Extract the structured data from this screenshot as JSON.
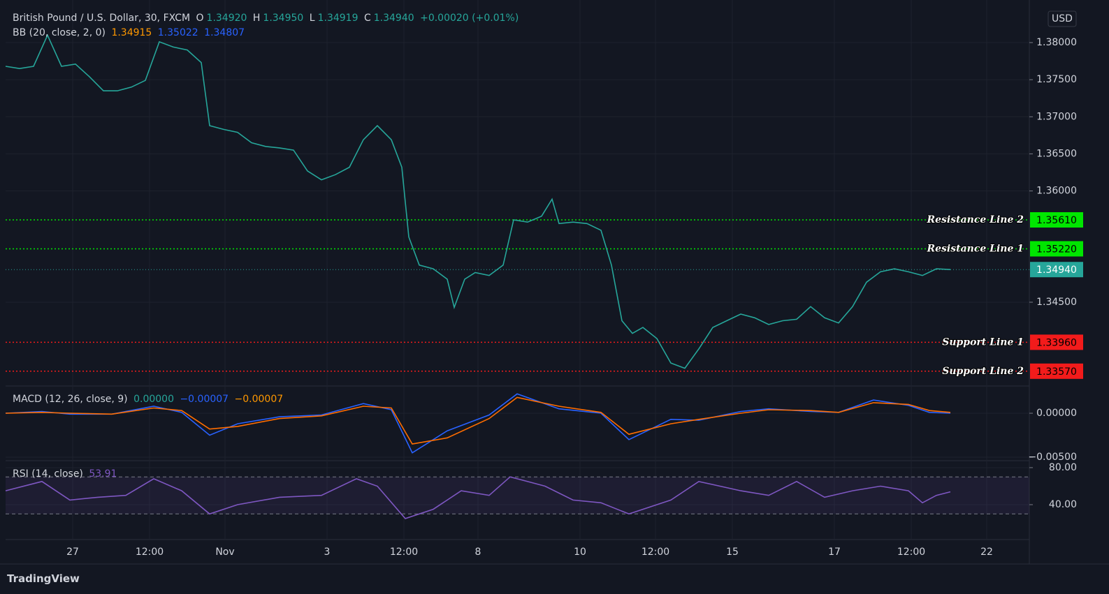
{
  "chart_data": [
    {
      "type": "line",
      "title": "British Pound / U.S. Dollar, 30, FXCM",
      "ohlc": [
        {
          "key": "O",
          "value": "1.34920"
        },
        {
          "key": "H",
          "value": "1.34950"
        },
        {
          "key": "L",
          "value": "1.34919"
        },
        {
          "key": "C",
          "value": "1.34940"
        }
      ],
      "change": "+0.00020 (+0.01%)",
      "indicator": "BB (20, close, 2, 0)",
      "indicator_values": [
        "1.34915",
        "1.35022",
        "1.34807"
      ],
      "currency": "USD",
      "color": "#26a69a",
      "x": [
        0,
        4,
        8,
        12,
        16,
        20,
        24,
        28,
        32,
        36,
        40,
        44,
        48,
        52,
        56,
        58.4,
        62.4,
        66.4,
        70.4,
        74.4,
        78.4,
        82.4,
        86.4,
        90.4,
        94.4,
        98.4,
        102.4,
        106.4,
        110.4,
        113.4,
        115.4,
        118.4,
        122.4,
        126.4,
        128.4,
        131.4,
        134.4,
        138.4,
        142.4,
        145.4,
        149.4,
        153.4,
        156.4,
        158.4,
        162.4,
        166.4,
        170.4,
        173.4,
        176.4,
        179.4,
        182.4,
        186.4,
        190.4,
        194.4,
        198.4,
        202.4,
        206.4,
        210.4,
        214.4,
        218.4,
        222.4,
        226.4,
        230.4,
        234.4,
        238.4,
        242.4,
        246.4,
        250.4,
        254.4,
        258.4,
        262.4,
        266.4,
        270.4
      ],
      "values": [
        1.3768,
        1.3765,
        1.3768,
        1.381,
        1.3768,
        1.3771,
        1.3754,
        1.3735,
        1.3735,
        1.374,
        1.3749,
        1.3801,
        1.3794,
        1.379,
        1.3773,
        1.3688,
        1.3683,
        1.3679,
        1.3665,
        1.366,
        1.3658,
        1.3655,
        1.3627,
        1.3615,
        1.3622,
        1.3632,
        1.3669,
        1.3688,
        1.3669,
        1.3632,
        1.3538,
        1.35,
        1.3495,
        1.3481,
        1.3443,
        1.3481,
        1.349,
        1.3486,
        1.35,
        1.3561,
        1.3558,
        1.3566,
        1.3589,
        1.3556,
        1.3558,
        1.3556,
        1.3547,
        1.35,
        1.3425,
        1.3408,
        1.3416,
        1.3401,
        1.3368,
        1.3361,
        1.3387,
        1.3416,
        1.3425,
        1.3434,
        1.3429,
        1.342,
        1.3425,
        1.3427,
        1.3444,
        1.3429,
        1.3422,
        1.3444,
        1.3477,
        1.3491,
        1.3495,
        1.3491,
        1.3486,
        1.3495,
        1.3494
      ],
      "xlim": [
        0,
        293
      ],
      "xticks": [
        {
          "value": 19.2,
          "label": "27"
        },
        {
          "value": 41.2,
          "label": "12:00"
        },
        {
          "value": 62.8,
          "label": "Nov"
        },
        {
          "value": 92,
          "label": "3"
        },
        {
          "value": 114,
          "label": "12:00"
        },
        {
          "value": 135.2,
          "label": "8"
        },
        {
          "value": 164.4,
          "label": "10"
        },
        {
          "value": 186,
          "label": "12:00"
        },
        {
          "value": 208,
          "label": "15"
        },
        {
          "value": 237.2,
          "label": "17"
        },
        {
          "value": 259.2,
          "label": "12:00"
        },
        {
          "value": 280.8,
          "label": "22"
        }
      ],
      "ylim": [
        1.3338,
        1.3848
      ],
      "yticks": [
        {
          "value": 1.38,
          "label": "1.38000"
        },
        {
          "value": 1.375,
          "label": "1.37500"
        },
        {
          "value": 1.37,
          "label": "1.37000"
        },
        {
          "value": 1.365,
          "label": "1.36500"
        },
        {
          "value": 1.36,
          "label": "1.36000"
        },
        {
          "value": 1.345,
          "label": "1.34500"
        }
      ],
      "levels": [
        {
          "name": "Resistance Line 2",
          "value": 1.3561,
          "label": "1.35610",
          "color": "#00e600"
        },
        {
          "name": "Resistance Line 1",
          "value": 1.3522,
          "label": "1.35220",
          "color": "#00e600"
        },
        {
          "name": "Support Line 1",
          "value": 1.3396,
          "label": "1.33960",
          "color": "#f21b1b"
        },
        {
          "name": "Support Line 2",
          "value": 1.3357,
          "label": "1.33570",
          "color": "#f21b1b"
        }
      ],
      "last_price": {
        "value": 1.3494,
        "label": "1.34940",
        "color": "#26a69a"
      },
      "grid": true
    },
    {
      "type": "line",
      "title": "MACD (12, 26, close, 9)",
      "indicator_values": [
        "0.00000",
        "−0.00007",
        "−0.00007"
      ],
      "x": [
        0,
        10.4,
        18.4,
        30.4,
        42.4,
        50.4,
        58.4,
        66.4,
        78.4,
        90.4,
        102.4,
        110.4,
        116.4,
        126.4,
        138.4,
        146.4,
        158.4,
        170.4,
        178.4,
        190.4,
        198.4,
        210.4,
        218.4,
        230.4,
        238.4,
        248.4,
        258.4,
        264.4,
        270.4
      ],
      "series": [
        {
          "color": "#2962ff",
          "values": [
            0,
            0.0002,
            -0.0001,
            -0.0001,
            0.0008,
            0.0001,
            -0.0025,
            -0.0012,
            -0.0004,
            -0.0002,
            0.0011,
            0.0004,
            -0.0045,
            -0.002,
            -0.0002,
            0.0022,
            0.0005,
            0,
            -0.003,
            -0.0007,
            -0.0008,
            0.0002,
            0.0005,
            0.0002,
            0.0001,
            0.0015,
            0.0009,
            0.0001,
            0
          ]
        },
        {
          "color": "#ff6d00",
          "values": [
            0,
            0.0001,
            0,
            -0.0001,
            0.0006,
            0.0003,
            -0.0018,
            -0.0015,
            -0.0006,
            -0.0003,
            0.0008,
            0.0006,
            -0.0035,
            -0.0028,
            -0.0006,
            0.0018,
            0.0008,
            0.0001,
            -0.0024,
            -0.0012,
            -0.0007,
            0,
            0.0004,
            0.0003,
            0.0001,
            0.0012,
            0.001,
            0.0003,
            0.0001
          ]
        }
      ],
      "xlim": [
        0,
        293
      ],
      "ylim": [
        -0.0054,
        0.0031
      ],
      "yticks": [
        {
          "value": 0,
          "label": "0.00000"
        },
        {
          "value": -0.005,
          "label": "−0.00500"
        }
      ],
      "grid": true
    },
    {
      "type": "line",
      "title": "RSI (14, close)",
      "indicator_values": [
        "53.91"
      ],
      "color": "#7e57c2",
      "x": [
        0,
        10.4,
        18.4,
        26.4,
        34.4,
        42.4,
        50.4,
        58.4,
        66.4,
        78.4,
        90.4,
        100.4,
        106.4,
        114.4,
        122.4,
        130.4,
        138.4,
        144.4,
        154.4,
        162.4,
        170.4,
        178.4,
        190.4,
        198.4,
        210.4,
        218.4,
        226.4,
        234.4,
        242.4,
        250.4,
        258.4,
        262.4,
        266.4,
        270.4
      ],
      "values": [
        55,
        65,
        45,
        48,
        50,
        68,
        55,
        30,
        40,
        48,
        50,
        68,
        60,
        25,
        35,
        55,
        50,
        70,
        60,
        45,
        42,
        30,
        45,
        65,
        55,
        50,
        65,
        48,
        55,
        60,
        55,
        42,
        50,
        53.91
      ],
      "xlim": [
        0,
        293
      ],
      "ylim": [
        2.3,
        87.5
      ],
      "yticks": [
        {
          "value": 80,
          "label": "80.00"
        },
        {
          "value": 40,
          "label": "40.00"
        }
      ],
      "band_levels": [
        70,
        30
      ],
      "grid": true
    }
  ],
  "footer": {
    "brand": "TradingView"
  }
}
